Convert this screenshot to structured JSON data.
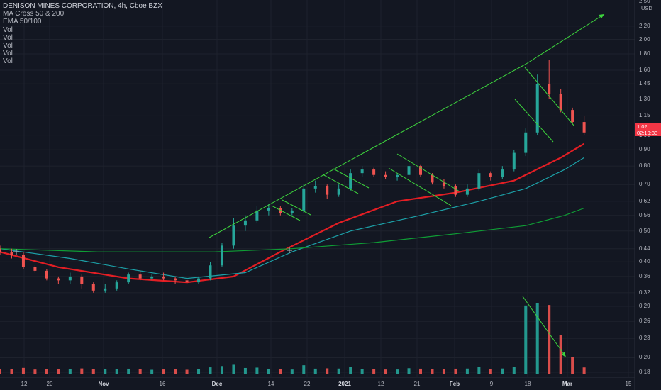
{
  "legend": {
    "title": "DENISON MINES CORPORATION, 4h, Cboe BZX",
    "indicators": [
      "MA Cross 50 & 200",
      "EMA 50/100",
      "Vol",
      "Vol",
      "Vol",
      "Vol",
      "Vol"
    ]
  },
  "price_axis": {
    "unit": "USD",
    "top_label": "2.50",
    "ticks": [
      "2.20",
      "2.00",
      "1.80",
      "1.60",
      "1.45",
      "1.30",
      "1.15",
      "1.00",
      "0.90",
      "0.80",
      "0.70",
      "0.62",
      "0.56",
      "0.50",
      "0.44",
      "0.40",
      "0.36",
      "0.32",
      "0.29",
      "0.26",
      "0.23",
      "0.20",
      "0.18"
    ],
    "last_price": "1.02",
    "countdown": "02:19:33"
  },
  "time_axis": {
    "labels": [
      "12",
      "20",
      "Nov",
      "16",
      "Dec",
      "14",
      "22",
      "2021",
      "12",
      "21",
      "Feb",
      "9",
      "18",
      "Mar",
      "15"
    ],
    "bold": [
      "Nov",
      "Dec",
      "2021",
      "Feb",
      "Mar"
    ]
  },
  "colors": {
    "background": "#131722",
    "grid": "#1e222d",
    "up": "#26a69a",
    "down": "#ef5350",
    "ema_red": "#e31e24",
    "ma_teal": "#1ca1a8",
    "ma_green": "#0f9d35",
    "trend": "#3dd33d"
  },
  "chart_data": {
    "type": "candlestick",
    "title": "DENISON MINES CORPORATION, 4h, Cboe BZX",
    "ylabel": "USD",
    "scale": "log",
    "ylim": [
      0.18,
      2.5
    ],
    "x_range": [
      "2020-10-07",
      "2021-03-19"
    ],
    "last_price": 1.02,
    "candles": [
      [
        "2020-10-07",
        0.44,
        0.45,
        0.42,
        0.43
      ],
      [
        "2020-10-10",
        0.43,
        0.44,
        0.41,
        0.42
      ],
      [
        "2020-10-13",
        0.42,
        0.43,
        0.38,
        0.385
      ],
      [
        "2020-10-16",
        0.385,
        0.39,
        0.37,
        0.375
      ],
      [
        "2020-10-19",
        0.375,
        0.38,
        0.35,
        0.355
      ],
      [
        "2020-10-22",
        0.355,
        0.36,
        0.34,
        0.35
      ],
      [
        "2020-10-25",
        0.35,
        0.37,
        0.34,
        0.36
      ],
      [
        "2020-10-28",
        0.36,
        0.365,
        0.33,
        0.34
      ],
      [
        "2020-10-31",
        0.34,
        0.345,
        0.32,
        0.325
      ],
      [
        "2020-11-03",
        0.325,
        0.34,
        0.32,
        0.33
      ],
      [
        "2020-11-06",
        0.33,
        0.35,
        0.325,
        0.345
      ],
      [
        "2020-11-09",
        0.345,
        0.37,
        0.34,
        0.365
      ],
      [
        "2020-11-12",
        0.365,
        0.375,
        0.35,
        0.355
      ],
      [
        "2020-11-15",
        0.355,
        0.365,
        0.35,
        0.36
      ],
      [
        "2020-11-18",
        0.36,
        0.37,
        0.35,
        0.355
      ],
      [
        "2020-11-21",
        0.355,
        0.36,
        0.34,
        0.35
      ],
      [
        "2020-11-24",
        0.35,
        0.355,
        0.34,
        0.345
      ],
      [
        "2020-11-27",
        0.345,
        0.36,
        0.34,
        0.355
      ],
      [
        "2020-11-30",
        0.355,
        0.4,
        0.35,
        0.39
      ],
      [
        "2020-12-03",
        0.39,
        0.46,
        0.385,
        0.45
      ],
      [
        "2020-12-06",
        0.45,
        0.55,
        0.44,
        0.52
      ],
      [
        "2020-12-09",
        0.52,
        0.56,
        0.5,
        0.54
      ],
      [
        "2020-12-12",
        0.54,
        0.6,
        0.53,
        0.58
      ],
      [
        "2020-12-15",
        0.58,
        0.61,
        0.56,
        0.59
      ],
      [
        "2020-12-18",
        0.59,
        0.6,
        0.56,
        0.57
      ],
      [
        "2020-12-21",
        0.57,
        0.59,
        0.56,
        0.58
      ],
      [
        "2020-12-24",
        0.58,
        0.7,
        0.57,
        0.68
      ],
      [
        "2020-12-27",
        0.68,
        0.72,
        0.66,
        0.69
      ],
      [
        "2020-12-30",
        0.69,
        0.7,
        0.63,
        0.65
      ],
      [
        "2021-01-02",
        0.65,
        0.7,
        0.64,
        0.68
      ],
      [
        "2021-01-05",
        0.68,
        0.78,
        0.67,
        0.76
      ],
      [
        "2021-01-08",
        0.76,
        0.8,
        0.74,
        0.78
      ],
      [
        "2021-01-11",
        0.78,
        0.79,
        0.74,
        0.75
      ],
      [
        "2021-01-14",
        0.75,
        0.77,
        0.73,
        0.74
      ],
      [
        "2021-01-17",
        0.74,
        0.76,
        0.72,
        0.75
      ],
      [
        "2021-01-20",
        0.75,
        0.82,
        0.74,
        0.8
      ],
      [
        "2021-01-23",
        0.8,
        0.81,
        0.74,
        0.75
      ],
      [
        "2021-01-26",
        0.75,
        0.76,
        0.7,
        0.71
      ],
      [
        "2021-01-29",
        0.71,
        0.73,
        0.68,
        0.69
      ],
      [
        "2021-02-01",
        0.69,
        0.7,
        0.64,
        0.65
      ],
      [
        "2021-02-04",
        0.65,
        0.7,
        0.64,
        0.68
      ],
      [
        "2021-02-07",
        0.68,
        0.78,
        0.67,
        0.76
      ],
      [
        "2021-02-10",
        0.76,
        0.77,
        0.72,
        0.74
      ],
      [
        "2021-02-13",
        0.74,
        0.8,
        0.73,
        0.78
      ],
      [
        "2021-02-16",
        0.78,
        0.9,
        0.77,
        0.88
      ],
      [
        "2021-02-19",
        0.88,
        1.05,
        0.86,
        1.02
      ],
      [
        "2021-02-22",
        1.02,
        1.55,
        1.0,
        1.45
      ],
      [
        "2021-02-25",
        1.45,
        1.72,
        1.3,
        1.35
      ],
      [
        "2021-02-28",
        1.35,
        1.4,
        1.18,
        1.2
      ],
      [
        "2021-03-03",
        1.2,
        1.22,
        1.08,
        1.1
      ],
      [
        "2021-03-06",
        1.1,
        1.15,
        1.0,
        1.02
      ]
    ],
    "series": [
      {
        "name": "EMA 50/100",
        "color": "#e31e24",
        "points": [
          [
            "2020-10-07",
            0.43
          ],
          [
            "2020-10-22",
            0.385
          ],
          [
            "2020-11-09",
            0.355
          ],
          [
            "2020-11-24",
            0.345
          ],
          [
            "2020-12-06",
            0.36
          ],
          [
            "2020-12-18",
            0.43
          ],
          [
            "2021-01-02",
            0.53
          ],
          [
            "2021-01-17",
            0.62
          ],
          [
            "2021-02-01",
            0.66
          ],
          [
            "2021-02-16",
            0.72
          ],
          [
            "2021-02-28",
            0.85
          ],
          [
            "2021-03-06",
            0.94
          ]
        ]
      },
      {
        "name": "MA Cross 50 & 200",
        "color": "#1ca1a8",
        "points": [
          [
            "2020-10-07",
            0.44
          ],
          [
            "2020-10-25",
            0.41
          ],
          [
            "2020-11-09",
            0.38
          ],
          [
            "2020-11-24",
            0.355
          ],
          [
            "2020-12-09",
            0.37
          ],
          [
            "2020-12-21",
            0.43
          ],
          [
            "2021-01-05",
            0.5
          ],
          [
            "2021-01-23",
            0.56
          ],
          [
            "2021-02-07",
            0.62
          ],
          [
            "2021-02-19",
            0.68
          ],
          [
            "2021-03-01",
            0.78
          ],
          [
            "2021-03-06",
            0.85
          ]
        ]
      },
      {
        "name": "MA Cross 50 & 200",
        "color": "#0f9d35",
        "points": [
          [
            "2020-10-07",
            0.44
          ],
          [
            "2020-11-01",
            0.43
          ],
          [
            "2020-12-01",
            0.43
          ],
          [
            "2020-12-21",
            0.44
          ],
          [
            "2021-01-11",
            0.46
          ],
          [
            "2021-02-01",
            0.49
          ],
          [
            "2021-02-19",
            0.52
          ],
          [
            "2021-03-01",
            0.56
          ],
          [
            "2021-03-06",
            0.59
          ]
        ]
      }
    ]
  }
}
